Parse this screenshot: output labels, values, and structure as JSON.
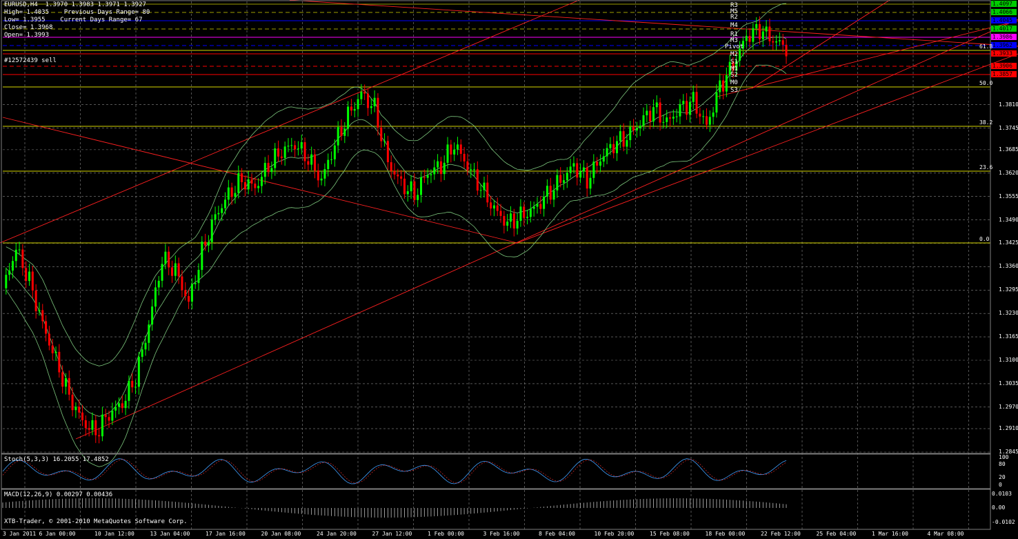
{
  "header": {
    "symbol_line": "EURUSD,H4  1.3970 1.3983 1.3971 1.3927",
    "high_line": "High= 1.4035    Previous Days Range= 80",
    "low_line": "Low= 1.3955    Current Days Range= 67",
    "close_line": "Close= 1.3968",
    "open_line": "Open= 1.3993",
    "order_label": "#12572439 sell"
  },
  "indicators": {
    "stoch_label": "Stoch(5,3,3) 16.2055 17.4852",
    "stoch_levels": [
      "100",
      "80",
      "20",
      "0"
    ],
    "macd_label": "MACD(12,26,9) 0.00297 0.00436",
    "macd_levels": [
      "0.0103",
      "0.00",
      "-0.0102"
    ]
  },
  "footer": {
    "copyright": "XTB-Trader, © 2001-2010 MetaQuotes Software Corp."
  },
  "price_axis": [
    "1.4097",
    "1.4066",
    "1.4045",
    "1.4017",
    "1.3986",
    "1.3962",
    "1.3933",
    "1.3906",
    "1.3880",
    "1.3857",
    "1.3810",
    "1.3745",
    "1.3685",
    "1.3620",
    "1.3555",
    "1.3490",
    "1.3425",
    "1.3360",
    "1.3295",
    "1.3230",
    "1.3165",
    "1.3100",
    "1.3035",
    "1.2970",
    "1.2910",
    "1.2845"
  ],
  "price_tags": [
    {
      "text": "1.4097",
      "color": "#00cc00"
    },
    {
      "text": "1.4066",
      "color": "#00cc00"
    },
    {
      "text": "1.4045",
      "color": "#0000ff"
    },
    {
      "text": "1.4017",
      "color": "#00cc00"
    },
    {
      "text": "1.3986",
      "color": "#ff00ff"
    },
    {
      "text": "1.3962",
      "color": "#0000ff"
    },
    {
      "text": "1.3933",
      "color": "#ff0000"
    },
    {
      "text": "1.3906",
      "color": "#ff0000"
    },
    {
      "text": "1.3857",
      "color": "#ff0000"
    }
  ],
  "pivot_labels": [
    "R3",
    "M5",
    "R2",
    "M4",
    "R1",
    "M3",
    "Pivot",
    "M2",
    "S1",
    "M1",
    "S2",
    "M0",
    "S3"
  ],
  "fib_labels": [
    "61.8",
    "50.0",
    "38.2",
    "23.6",
    "0.0"
  ],
  "date_axis": [
    "3 Jan 2011",
    "6 Jan 00:00",
    "10 Jan 12:00",
    "13 Jan 04:00",
    "17 Jan 16:00",
    "20 Jan 08:00",
    "24 Jan 20:00",
    "27 Jan 12:00",
    "1 Feb 00:00",
    "3 Feb 16:00",
    "8 Feb 04:00",
    "10 Feb 20:00",
    "15 Feb 08:00",
    "18 Feb 00:00",
    "22 Feb 12:00",
    "25 Feb 04:00",
    "1 Mar 16:00",
    "4 Mar 08:00"
  ],
  "chart_data": {
    "type": "candlestick",
    "symbol": "EURUSD",
    "timeframe": "H4",
    "ylim": [
      1.2845,
      1.4097
    ],
    "bullish_color": "#00ff00",
    "bearish_color": "#ff0000",
    "close_path": [
      [
        0,
        1.33
      ],
      [
        4,
        1.341
      ],
      [
        8,
        1.332
      ],
      [
        12,
        1.32
      ],
      [
        16,
        1.31
      ],
      [
        20,
        1.3
      ],
      [
        24,
        1.293
      ],
      [
        28,
        1.29
      ],
      [
        32,
        1.295
      ],
      [
        36,
        1.298
      ],
      [
        40,
        1.305
      ],
      [
        44,
        1.32
      ],
      [
        48,
        1.338
      ],
      [
        52,
        1.335
      ],
      [
        56,
        1.326
      ],
      [
        60,
        1.34
      ],
      [
        64,
        1.35
      ],
      [
        68,
        1.356
      ],
      [
        72,
        1.36
      ],
      [
        76,
        1.358
      ],
      [
        80,
        1.364
      ],
      [
        84,
        1.368
      ],
      [
        88,
        1.37
      ],
      [
        92,
        1.366
      ],
      [
        96,
        1.36
      ],
      [
        100,
        1.37
      ],
      [
        104,
        1.378
      ],
      [
        108,
        1.384
      ],
      [
        112,
        1.38
      ],
      [
        116,
        1.365
      ],
      [
        120,
        1.359
      ],
      [
        124,
        1.356
      ],
      [
        128,
        1.362
      ],
      [
        132,
        1.364
      ],
      [
        136,
        1.37
      ],
      [
        140,
        1.364
      ],
      [
        144,
        1.358
      ],
      [
        148,
        1.352
      ],
      [
        152,
        1.348
      ],
      [
        156,
        1.35
      ],
      [
        160,
        1.352
      ],
      [
        164,
        1.356
      ],
      [
        168,
        1.36
      ],
      [
        172,
        1.364
      ],
      [
        176,
        1.36
      ],
      [
        180,
        1.366
      ],
      [
        184,
        1.37
      ],
      [
        188,
        1.372
      ],
      [
        192,
        1.376
      ],
      [
        196,
        1.38
      ],
      [
        200,
        1.376
      ],
      [
        204,
        1.38
      ],
      [
        208,
        1.382
      ],
      [
        212,
        1.375
      ],
      [
        216,
        1.386
      ],
      [
        220,
        1.392
      ],
      [
        224,
        1.4
      ],
      [
        228,
        1.402
      ],
      [
        232,
        1.399
      ],
      [
        236,
        1.3968
      ]
    ],
    "indicator_panels": [
      {
        "name": "Stoch(5,3,3)",
        "main": 16.2055,
        "signal": 17.4852
      },
      {
        "name": "MACD(12,26,9)",
        "main": 0.00297,
        "signal": 0.00436
      }
    ]
  }
}
